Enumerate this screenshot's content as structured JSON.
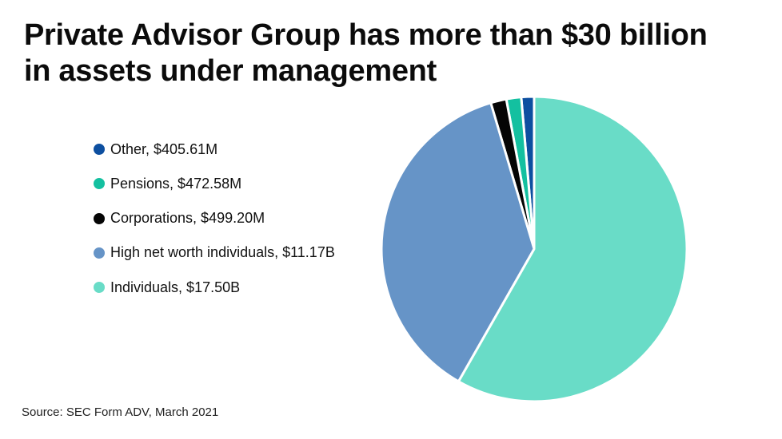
{
  "title_lines": [
    "Private Advisor Group has more than $30 billion",
    "in assets under management"
  ],
  "source": "Source: SEC Form ADV, March 2021",
  "chart_data": {
    "type": "pie",
    "title": "Private Advisor Group has more than $30 billion in assets under management",
    "unit": "USD",
    "start": "12 o'clock",
    "direction": "counterclockwise",
    "slices": [
      {
        "name": "Other",
        "label": "Other, $405.61M",
        "value": 405.61,
        "color": "#0d4fa0"
      },
      {
        "name": "Pensions",
        "label": "Pensions, $472.58M",
        "value": 472.58,
        "color": "#14c0a0"
      },
      {
        "name": "Corporations",
        "label": "Corporations, $499.20M",
        "value": 499.2,
        "color": "#050505"
      },
      {
        "name": "High net worth individuals",
        "label": "High net worth individuals, $11.17B",
        "value": 11170,
        "color": "#6694c7"
      },
      {
        "name": "Individuals",
        "label": "Individuals, $17.50B",
        "value": 17500,
        "color": "#69dcc7"
      }
    ]
  }
}
